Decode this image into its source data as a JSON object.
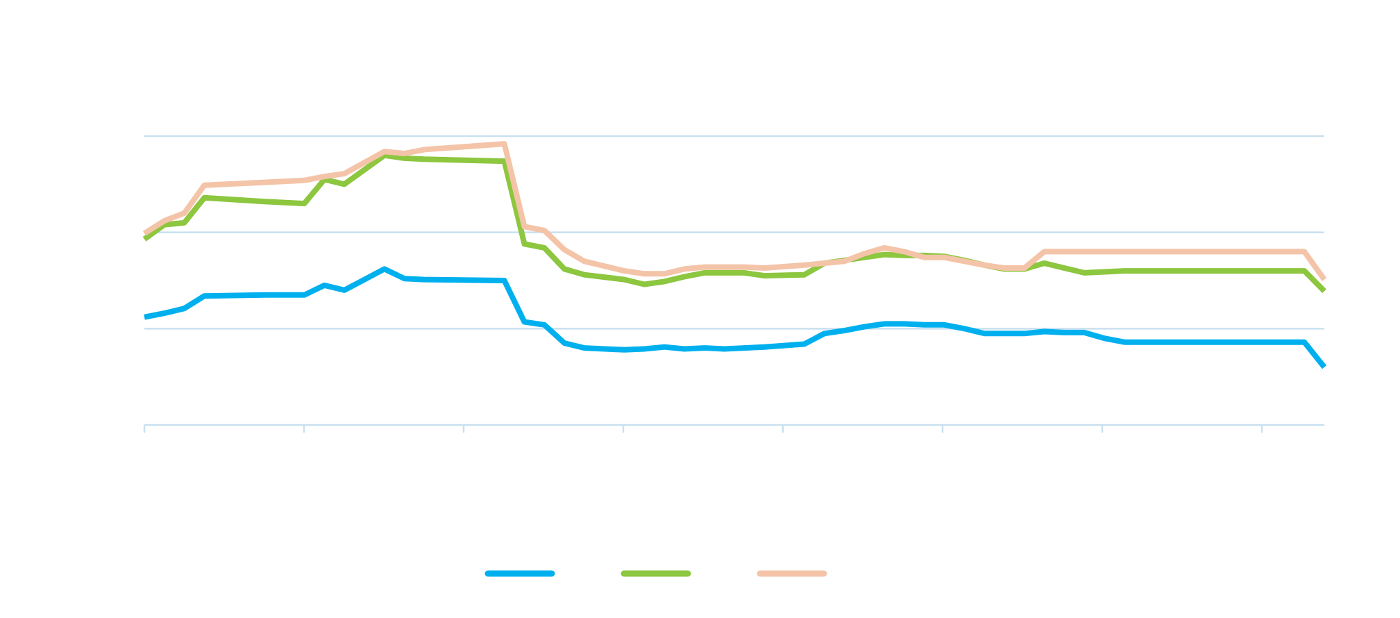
{
  "chart_data": {
    "type": "line",
    "title": "",
    "xlabel": "",
    "ylabel": "",
    "grid": true,
    "x": [
      0,
      2,
      4,
      6,
      12,
      16,
      18,
      20,
      24,
      26,
      28,
      36,
      38,
      40,
      42,
      44,
      48,
      50,
      52,
      54,
      56,
      58,
      60,
      62,
      66,
      68,
      70,
      72,
      74,
      76,
      78,
      80,
      82,
      84,
      86,
      88,
      90,
      92,
      94,
      96,
      98,
      100,
      102,
      104,
      106,
      108,
      110,
      112,
      114,
      116,
      118
    ],
    "xlim": [
      0,
      118
    ],
    "ylim": [
      0,
      3
    ],
    "xtick_count": 8,
    "legend_position": "bottom",
    "series": [
      {
        "color": "#00b0ee",
        "values": [
          1.12,
          1.16,
          1.21,
          1.34,
          1.35,
          1.35,
          1.45,
          1.4,
          1.62,
          1.52,
          1.51,
          1.5,
          1.07,
          1.04,
          0.85,
          0.8,
          0.78,
          0.79,
          0.81,
          0.79,
          0.8,
          0.79,
          0.8,
          0.81,
          0.84,
          0.95,
          0.98,
          1.02,
          1.05,
          1.05,
          1.04,
          1.04,
          1.0,
          0.95,
          0.95,
          0.95,
          0.97,
          0.96,
          0.96,
          0.9,
          0.86,
          0.86,
          0.86,
          0.86,
          0.86,
          0.86,
          0.86,
          0.86,
          0.86,
          0.86,
          0.6
        ]
      },
      {
        "color": "#8dc63f",
        "values": [
          1.93,
          2.08,
          2.1,
          2.36,
          2.32,
          2.3,
          2.55,
          2.5,
          2.8,
          2.77,
          2.76,
          2.74,
          1.88,
          1.84,
          1.62,
          1.56,
          1.51,
          1.46,
          1.49,
          1.54,
          1.58,
          1.58,
          1.58,
          1.55,
          1.56,
          1.68,
          1.71,
          1.74,
          1.77,
          1.76,
          1.76,
          1.75,
          1.71,
          1.66,
          1.62,
          1.62,
          1.68,
          1.63,
          1.58,
          1.59,
          1.6,
          1.6,
          1.6,
          1.6,
          1.6,
          1.6,
          1.6,
          1.6,
          1.6,
          1.6,
          1.39
        ]
      },
      {
        "color": "#f4c4a8",
        "values": [
          1.99,
          2.12,
          2.2,
          2.49,
          2.52,
          2.54,
          2.58,
          2.61,
          2.84,
          2.82,
          2.86,
          2.92,
          2.06,
          2.02,
          1.82,
          1.7,
          1.6,
          1.57,
          1.57,
          1.62,
          1.64,
          1.64,
          1.64,
          1.63,
          1.66,
          1.68,
          1.7,
          1.78,
          1.84,
          1.8,
          1.74,
          1.74,
          1.7,
          1.66,
          1.63,
          1.63,
          1.8,
          1.8,
          1.8,
          1.8,
          1.8,
          1.8,
          1.8,
          1.8,
          1.8,
          1.8,
          1.8,
          1.8,
          1.8,
          1.8,
          1.51
        ]
      }
    ]
  }
}
